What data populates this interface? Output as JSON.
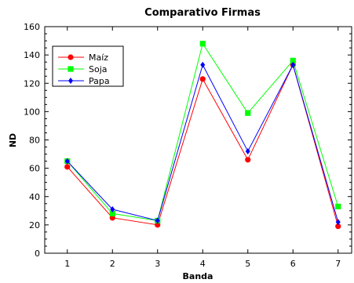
{
  "chart_data": {
    "type": "line",
    "title": "Comparativo Firmas",
    "xlabel": "Banda",
    "ylabel": "ND",
    "x": [
      1,
      2,
      3,
      4,
      5,
      6,
      7
    ],
    "xlim": [
      0.5,
      7.3
    ],
    "ylim": [
      0,
      160
    ],
    "yticks": [
      0,
      20,
      40,
      60,
      80,
      100,
      120,
      140,
      160
    ],
    "grid": false,
    "legend_position": "top-left",
    "series": [
      {
        "name": "Maíz",
        "color": "#ff0000",
        "marker": "circle",
        "values": [
          61,
          25,
          20,
          123,
          66,
          133,
          19
        ]
      },
      {
        "name": "Soja",
        "color": "#00ff00",
        "marker": "square",
        "values": [
          65,
          28,
          23,
          148,
          99,
          136,
          33
        ]
      },
      {
        "name": "Papa",
        "color": "#0000ff",
        "marker": "diamond",
        "values": [
          65,
          31,
          23,
          133,
          72,
          133,
          22
        ]
      }
    ]
  }
}
